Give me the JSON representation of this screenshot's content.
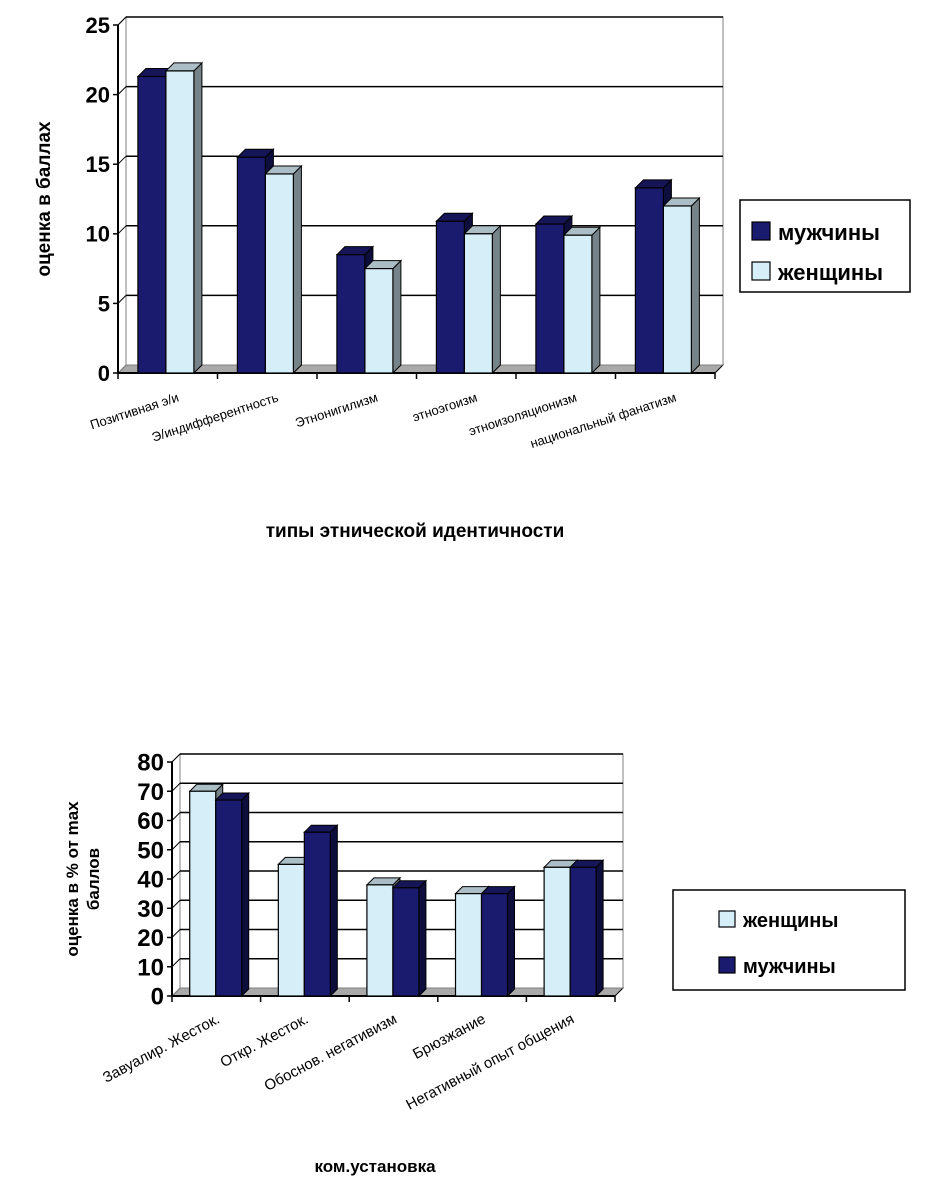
{
  "chart_data": [
    {
      "type": "bar",
      "categories": [
        "Позитивная э/и",
        "Э/индифферентность",
        "Этнонигилизм",
        "этноэгоизм",
        "этноизоляционизм",
        "национальный фанатизм"
      ],
      "series": [
        {
          "name": "мужчины",
          "values": [
            21.3,
            15.5,
            8.5,
            10.9,
            10.7,
            13.3
          ],
          "color": "#1a1a6e"
        },
        {
          "name": "женщины",
          "values": [
            21.7,
            14.3,
            7.5,
            10.0,
            9.9,
            12.0
          ],
          "color": "#d6eef8"
        }
      ],
      "legend": [
        "мужчины",
        "женщины"
      ],
      "title": "",
      "xlabel": "типы этнической идентичности",
      "ylabel": "оценка в баллах",
      "ylim": [
        0,
        25
      ],
      "yticks": [
        "0",
        "5",
        "10",
        "15",
        "20",
        "25"
      ],
      "grid": true,
      "legend_position": "right"
    },
    {
      "type": "bar",
      "categories": [
        "Завуалир. Жесток.",
        "Откр. Жесток.",
        "Обоснов. негативизм",
        "Брюзжание",
        "Негативный опыт общения"
      ],
      "series": [
        {
          "name": "женщины",
          "values": [
            70,
            45,
            38,
            35,
            44
          ],
          "color": "#d6eef8"
        },
        {
          "name": "мужчины",
          "values": [
            67,
            56,
            37,
            35,
            44
          ],
          "color": "#1a1a6e"
        }
      ],
      "legend": [
        "женщины",
        "мужчины"
      ],
      "title": "",
      "xlabel": "ком.установка",
      "ylabel": "оценка в % от max баллов",
      "ylim": [
        0,
        80
      ],
      "yticks": [
        "0",
        "10",
        "20",
        "30",
        "40",
        "50",
        "60",
        "70",
        "80"
      ],
      "grid": true,
      "legend_position": "right"
    }
  ]
}
